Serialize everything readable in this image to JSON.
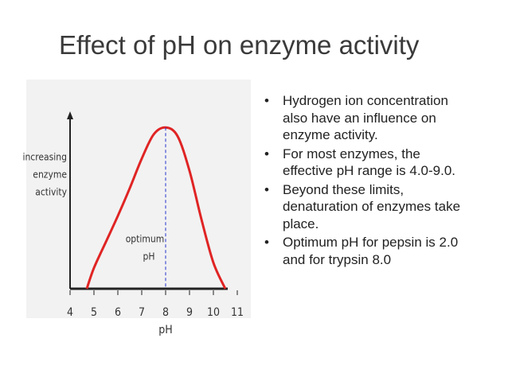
{
  "slide": {
    "title": "Effect of pH on enzyme activity",
    "bullets": [
      "Hydrogen ion concentration also have an influence on enzyme activity.",
      "For most enzymes, the effective pH range is 4.0-9.0.",
      "Beyond these limits, denaturation of enzymes take place.",
      "Optimum pH for pepsin is 2.0 and for trypsin 8.0"
    ]
  },
  "chart_data": {
    "type": "line",
    "xlabel": "pH",
    "ylabel": [
      "increasing",
      "enzyme",
      "activity"
    ],
    "annotation": [
      "optimum",
      "pH"
    ],
    "x": [
      4.7,
      5,
      5.5,
      6,
      6.5,
      7,
      7.5,
      8,
      8.5,
      9,
      9.5,
      10,
      10.5
    ],
    "values": [
      0,
      12,
      27,
      42,
      58,
      75,
      89,
      93,
      88,
      68,
      40,
      15,
      0
    ],
    "color": "#e02424",
    "optimum": 8,
    "xlim": [
      4,
      11
    ],
    "xticks": [
      4,
      5,
      6,
      7,
      8,
      9,
      10,
      11
    ],
    "ylim": [
      0,
      100
    ]
  }
}
